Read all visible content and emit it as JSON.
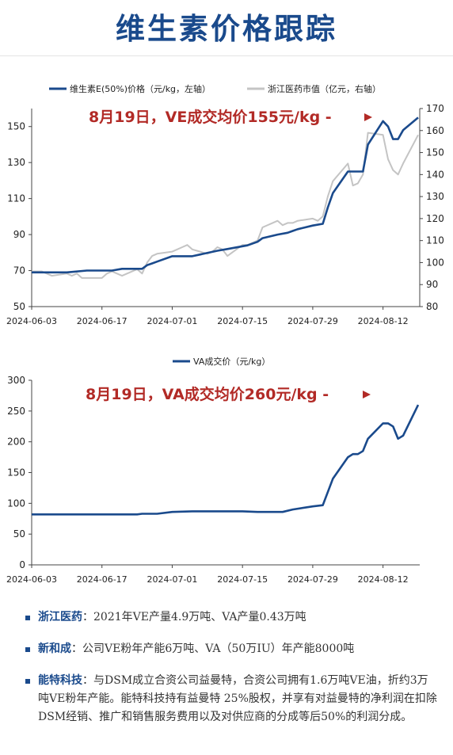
{
  "header": {
    "title": "维生素价格跟踪"
  },
  "chart_data": [
    {
      "type": "line",
      "legend": [
        "维生素E(50%)价格（元/kg，左轴）",
        "浙江医药市值（亿元，右轴）"
      ],
      "annotation": "8月19日，VE成交均价155元/kg",
      "x_tick_labels": [
        "2024-06-03",
        "2024-06-17",
        "2024-07-01",
        "2024-07-15",
        "2024-07-29",
        "2024-08-12"
      ],
      "x_range": [
        "2024-06-03",
        "2024-08-19"
      ],
      "y_left": {
        "range": [
          50,
          160
        ],
        "ticks": [
          50,
          70,
          90,
          110,
          130,
          150
        ]
      },
      "y_right": {
        "range": [
          80,
          170
        ],
        "ticks": [
          80,
          90,
          100,
          110,
          120,
          130,
          140,
          150,
          160,
          170
        ]
      },
      "series": [
        {
          "name": "维生素E(50%)价格（元/kg，左轴）",
          "axis": "left",
          "color": "#1a4a8c",
          "points": [
            [
              "2024-06-03",
              69
            ],
            [
              "2024-06-05",
              69
            ],
            [
              "2024-06-10",
              69
            ],
            [
              "2024-06-14",
              70
            ],
            [
              "2024-06-19",
              70
            ],
            [
              "2024-06-21",
              71
            ],
            [
              "2024-06-25",
              71
            ],
            [
              "2024-06-26",
              73
            ],
            [
              "2024-06-27",
              74
            ],
            [
              "2024-06-28",
              75
            ],
            [
              "2024-07-01",
              78
            ],
            [
              "2024-07-05",
              78
            ],
            [
              "2024-07-10",
              81
            ],
            [
              "2024-07-12",
              82
            ],
            [
              "2024-07-16",
              84
            ],
            [
              "2024-07-18",
              86
            ],
            [
              "2024-07-19",
              88
            ],
            [
              "2024-07-22",
              90
            ],
            [
              "2024-07-24",
              91
            ],
            [
              "2024-07-25",
              92
            ],
            [
              "2024-07-26",
              93
            ],
            [
              "2024-07-29",
              95
            ],
            [
              "2024-07-31",
              96
            ],
            [
              "2024-08-01",
              105
            ],
            [
              "2024-08-02",
              113
            ],
            [
              "2024-08-05",
              125
            ],
            [
              "2024-08-06",
              125
            ],
            [
              "2024-08-07",
              125
            ],
            [
              "2024-08-08",
              125
            ],
            [
              "2024-08-09",
              140
            ],
            [
              "2024-08-12",
              153
            ],
            [
              "2024-08-13",
              150
            ],
            [
              "2024-08-14",
              143
            ],
            [
              "2024-08-15",
              143
            ],
            [
              "2024-08-16",
              148
            ],
            [
              "2024-08-19",
              155
            ]
          ]
        },
        {
          "name": "浙江医药市值（亿元，右轴）",
          "axis": "right",
          "color": "#c4c4c4",
          "points": [
            [
              "2024-06-03",
              96
            ],
            [
              "2024-06-05",
              96
            ],
            [
              "2024-06-06",
              95
            ],
            [
              "2024-06-07",
              94
            ],
            [
              "2024-06-10",
              95
            ],
            [
              "2024-06-11",
              94
            ],
            [
              "2024-06-12",
              95
            ],
            [
              "2024-06-13",
              93
            ],
            [
              "2024-06-14",
              93
            ],
            [
              "2024-06-17",
              93
            ],
            [
              "2024-06-18",
              95
            ],
            [
              "2024-06-19",
              96
            ],
            [
              "2024-06-20",
              95
            ],
            [
              "2024-06-21",
              94
            ],
            [
              "2024-06-24",
              97
            ],
            [
              "2024-06-25",
              95
            ],
            [
              "2024-06-26",
              100
            ],
            [
              "2024-06-27",
              103
            ],
            [
              "2024-06-28",
              104
            ],
            [
              "2024-07-01",
              105
            ],
            [
              "2024-07-02",
              106
            ],
            [
              "2024-07-03",
              107
            ],
            [
              "2024-07-04",
              108
            ],
            [
              "2024-07-05",
              106
            ],
            [
              "2024-07-08",
              104
            ],
            [
              "2024-07-09",
              105
            ],
            [
              "2024-07-10",
              107
            ],
            [
              "2024-07-11",
              106
            ],
            [
              "2024-07-12",
              103
            ],
            [
              "2024-07-15",
              108
            ],
            [
              "2024-07-16",
              108
            ],
            [
              "2024-07-17",
              109
            ],
            [
              "2024-07-18",
              110
            ],
            [
              "2024-07-19",
              116
            ],
            [
              "2024-07-22",
              119
            ],
            [
              "2024-07-23",
              117
            ],
            [
              "2024-07-24",
              118
            ],
            [
              "2024-07-25",
              118
            ],
            [
              "2024-07-26",
              119
            ],
            [
              "2024-07-29",
              120
            ],
            [
              "2024-07-30",
              119
            ],
            [
              "2024-07-31",
              121
            ],
            [
              "2024-08-01",
              130
            ],
            [
              "2024-08-02",
              137
            ],
            [
              "2024-08-05",
              145
            ],
            [
              "2024-08-06",
              135
            ],
            [
              "2024-08-07",
              136
            ],
            [
              "2024-08-08",
              140
            ],
            [
              "2024-08-09",
              159
            ],
            [
              "2024-08-12",
              158
            ],
            [
              "2024-08-13",
              147
            ],
            [
              "2024-08-14",
              142
            ],
            [
              "2024-08-15",
              140
            ],
            [
              "2024-08-16",
              145
            ],
            [
              "2024-08-19",
              158
            ]
          ]
        }
      ]
    },
    {
      "type": "line",
      "legend": [
        "VA成交价（元/kg）"
      ],
      "annotation": "8月19日，VA成交均价260元/kg",
      "x_tick_labels": [
        "2024-06-03",
        "2024-06-17",
        "2024-07-01",
        "2024-07-15",
        "2024-07-29",
        "2024-08-12"
      ],
      "x_range": [
        "2024-06-03",
        "2024-08-19"
      ],
      "y_left": {
        "range": [
          0,
          300
        ],
        "ticks": [
          0,
          50,
          100,
          150,
          200,
          250,
          300
        ]
      },
      "series": [
        {
          "name": "VA成交价（元/kg）",
          "axis": "left",
          "color": "#1a4a8c",
          "points": [
            [
              "2024-06-03",
              82
            ],
            [
              "2024-06-10",
              82
            ],
            [
              "2024-06-17",
              82
            ],
            [
              "2024-06-24",
              82
            ],
            [
              "2024-06-25",
              83
            ],
            [
              "2024-06-28",
              83
            ],
            [
              "2024-07-01",
              86
            ],
            [
              "2024-07-05",
              87
            ],
            [
              "2024-07-10",
              87
            ],
            [
              "2024-07-15",
              87
            ],
            [
              "2024-07-18",
              86
            ],
            [
              "2024-07-23",
              86
            ],
            [
              "2024-07-25",
              90
            ],
            [
              "2024-07-29",
              95
            ],
            [
              "2024-07-31",
              97
            ],
            [
              "2024-08-02",
              140
            ],
            [
              "2024-08-05",
              175
            ],
            [
              "2024-08-06",
              180
            ],
            [
              "2024-08-07",
              180
            ],
            [
              "2024-08-08",
              185
            ],
            [
              "2024-08-09",
              205
            ],
            [
              "2024-08-12",
              230
            ],
            [
              "2024-08-13",
              230
            ],
            [
              "2024-08-14",
              225
            ],
            [
              "2024-08-15",
              205
            ],
            [
              "2024-08-16",
              210
            ],
            [
              "2024-08-19",
              260
            ]
          ]
        }
      ]
    }
  ],
  "bullets": [
    {
      "company": "浙江医药",
      "text": "：2021年VE产量4.9万吨、VA产量0.43万吨"
    },
    {
      "company": "新和成",
      "text": "：公司VE粉年产能6万吨、VA（50万IU）年产能8000吨"
    },
    {
      "company": "能特科技",
      "text": "：与DSM成立合资公司益曼特，合资公司拥有1.6万吨VE油，折约3万吨VE粉年产能。能特科技持有益曼特 25%股权，并享有对益曼特的净利润在扣除DSM经销、推广和销售服务费用以及对供应商的分成等后50%的利润分成。"
    }
  ]
}
